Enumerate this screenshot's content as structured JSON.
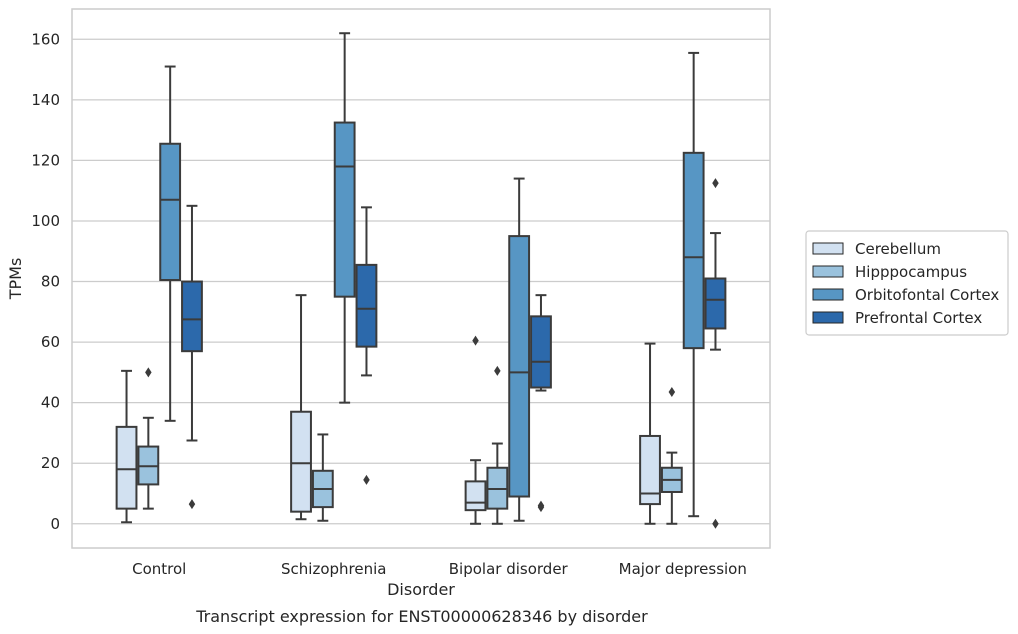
{
  "chart_data": {
    "type": "box",
    "title": "",
    "caption": "Transcript expression for ENST00000628346 by disorder",
    "xlabel": "Disorder",
    "ylabel": "TPMs",
    "ylim": [
      -8,
      170
    ],
    "yticks": [
      0,
      20,
      40,
      60,
      80,
      100,
      120,
      140,
      160
    ],
    "grid": true,
    "legend_position": "right",
    "categories": [
      "Control",
      "Schizophrenia",
      "Bipolar disorder",
      "Major depression"
    ],
    "series": [
      {
        "name": "Cerebellum",
        "color": "#d2e1f1",
        "boxes": [
          {
            "whisker_low": 0.5,
            "q1": 5,
            "median": 18,
            "q3": 32,
            "whisker_high": 50.5,
            "outliers": []
          },
          {
            "whisker_low": 1.5,
            "q1": 4,
            "median": 20,
            "q3": 37,
            "whisker_high": 75.5,
            "outliers": []
          },
          {
            "whisker_low": 0,
            "q1": 4.5,
            "median": 7,
            "q3": 14,
            "whisker_high": 21,
            "outliers": [
              60.5
            ]
          },
          {
            "whisker_low": 0,
            "q1": 6.5,
            "median": 10,
            "q3": 29,
            "whisker_high": 59.5,
            "outliers": []
          }
        ]
      },
      {
        "name": "Hipppocampus",
        "color": "#9ac2dd",
        "boxes": [
          {
            "whisker_low": 5,
            "q1": 13,
            "median": 19,
            "q3": 25.5,
            "whisker_high": 35,
            "outliers": [
              50
            ]
          },
          {
            "whisker_low": 1,
            "q1": 5.5,
            "median": 11.5,
            "q3": 17.5,
            "whisker_high": 29.5,
            "outliers": []
          },
          {
            "whisker_low": 0,
            "q1": 5,
            "median": 11.5,
            "q3": 18.5,
            "whisker_high": 26.5,
            "outliers": [
              50.5
            ]
          },
          {
            "whisker_low": 0,
            "q1": 10.5,
            "median": 14.5,
            "q3": 18.5,
            "whisker_high": 23.5,
            "outliers": [
              43.5
            ]
          }
        ]
      },
      {
        "name": "Orbitofontal Cortex",
        "color": "#5796c4",
        "boxes": [
          {
            "whisker_low": 34,
            "q1": 80.5,
            "median": 107,
            "q3": 125.5,
            "whisker_high": 151,
            "outliers": []
          },
          {
            "whisker_low": 40,
            "q1": 75,
            "median": 118,
            "q3": 132.5,
            "whisker_high": 162,
            "outliers": []
          },
          {
            "whisker_low": 1,
            "q1": 9,
            "median": 50,
            "q3": 95,
            "whisker_high": 114,
            "outliers": []
          },
          {
            "whisker_low": 2.5,
            "q1": 58,
            "median": 88,
            "q3": 122.5,
            "whisker_high": 155.5,
            "outliers": []
          }
        ]
      },
      {
        "name": "Prefrontal Cortex",
        "color": "#2c69ab",
        "boxes": [
          {
            "whisker_low": 27.5,
            "q1": 57,
            "median": 67.5,
            "q3": 80,
            "whisker_high": 105,
            "outliers": [
              6.5
            ]
          },
          {
            "whisker_low": 49,
            "q1": 58.5,
            "median": 71,
            "q3": 85.5,
            "whisker_high": 104.5,
            "outliers": [
              14.5
            ]
          },
          {
            "whisker_low": 44,
            "q1": 45,
            "median": 53.5,
            "q3": 68.5,
            "whisker_high": 75.5,
            "outliers": [
              5.5,
              6
            ]
          },
          {
            "whisker_low": 57.5,
            "q1": 64.5,
            "median": 74,
            "q3": 81,
            "whisker_high": 96,
            "outliers": [
              0,
              112.5
            ]
          }
        ]
      }
    ]
  }
}
